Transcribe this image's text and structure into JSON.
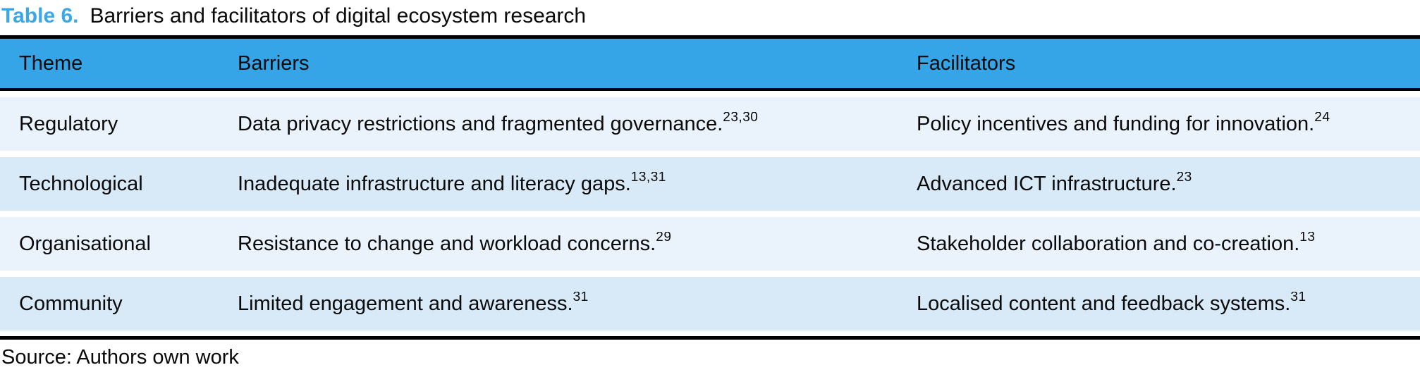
{
  "caption": {
    "label": "Table 6.",
    "text": "Barriers and facilitators of digital ecosystem research"
  },
  "columns": {
    "theme": "Theme",
    "barriers": "Barriers",
    "facilitators": "Facilitators"
  },
  "rows": [
    {
      "theme": "Regulatory",
      "barrier": "Data privacy restrictions and fragmented governance.",
      "barrier_refs": "23,30",
      "facilitator": "Policy incentives and funding for innovation.",
      "facilitator_refs": "24"
    },
    {
      "theme": "Technological",
      "barrier": "Inadequate infrastructure and literacy gaps.",
      "barrier_refs": "13,31",
      "facilitator": "Advanced ICT infrastructure.",
      "facilitator_refs": "23"
    },
    {
      "theme": "Organisational",
      "barrier": "Resistance to change and workload concerns.",
      "barrier_refs": "29",
      "facilitator": "Stakeholder collaboration and co-creation.",
      "facilitator_refs": "13"
    },
    {
      "theme": "Community",
      "barrier": "Limited engagement and awareness.",
      "barrier_refs": "31",
      "facilitator": "Localised content and feedback systems.",
      "facilitator_refs": "31"
    }
  ],
  "source": "Source: Authors own work",
  "colors": {
    "accent_blue": "#3aa7e8",
    "header_bg": "#35a5e8",
    "row_light": "#eaf2fb",
    "row_shaded": "#d8e9f7",
    "rule_black": "#000000"
  }
}
